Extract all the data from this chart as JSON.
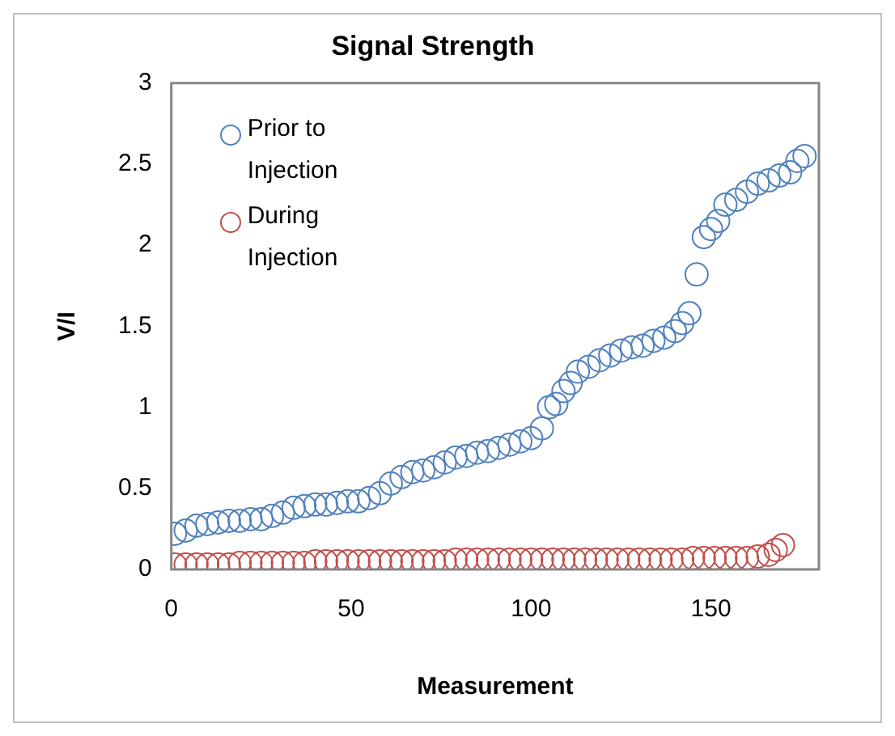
{
  "chart_data": {
    "type": "scatter",
    "title": "Signal Strength",
    "xlabel": "Measurement",
    "ylabel": "V/I",
    "xlim": [
      0,
      180
    ],
    "xticks": [
      0,
      50,
      100,
      150
    ],
    "ylim": [
      0,
      3
    ],
    "yticks": [
      0,
      0.5,
      1,
      1.5,
      2,
      2.5,
      3
    ],
    "grid": false,
    "legend": "top left",
    "marker": "circle",
    "series": [
      {
        "name": "Prior to Injection",
        "color": "#4f81bd",
        "x": [
          1,
          4,
          7,
          10,
          13,
          16,
          19,
          22,
          25,
          28,
          31,
          34,
          37,
          40,
          43,
          46,
          49,
          52,
          55,
          58,
          61,
          64,
          67,
          70,
          73,
          76,
          79,
          82,
          85,
          88,
          91,
          94,
          97,
          100,
          103,
          105,
          107,
          109,
          111,
          113,
          116,
          119,
          122,
          125,
          128,
          131,
          134,
          137,
          140,
          142,
          144,
          146,
          148,
          150,
          152,
          154,
          157,
          160,
          163,
          166,
          169,
          172,
          174,
          176
        ],
        "values": [
          0.22,
          0.24,
          0.27,
          0.28,
          0.29,
          0.3,
          0.3,
          0.31,
          0.31,
          0.33,
          0.35,
          0.38,
          0.39,
          0.4,
          0.4,
          0.41,
          0.42,
          0.42,
          0.44,
          0.47,
          0.53,
          0.57,
          0.6,
          0.61,
          0.63,
          0.66,
          0.69,
          0.7,
          0.72,
          0.73,
          0.75,
          0.77,
          0.79,
          0.81,
          0.87,
          1.0,
          1.02,
          1.1,
          1.15,
          1.22,
          1.25,
          1.29,
          1.32,
          1.35,
          1.37,
          1.38,
          1.41,
          1.43,
          1.47,
          1.52,
          1.58,
          1.82,
          2.05,
          2.1,
          2.15,
          2.25,
          2.28,
          2.33,
          2.38,
          2.4,
          2.43,
          2.45,
          2.52,
          2.55
        ]
      },
      {
        "name": "During Injection",
        "color": "#c0504d",
        "x": [
          1,
          4,
          7,
          10,
          13,
          16,
          19,
          22,
          25,
          28,
          31,
          34,
          37,
          40,
          43,
          46,
          49,
          52,
          55,
          58,
          61,
          64,
          67,
          70,
          73,
          76,
          79,
          82,
          85,
          88,
          91,
          94,
          97,
          100,
          103,
          106,
          109,
          112,
          115,
          118,
          121,
          124,
          127,
          130,
          133,
          136,
          139,
          142,
          145,
          148,
          151,
          154,
          157,
          160,
          163,
          166,
          168,
          170
        ],
        "values": [
          0.03,
          0.03,
          0.03,
          0.03,
          0.03,
          0.03,
          0.04,
          0.04,
          0.04,
          0.04,
          0.04,
          0.04,
          0.04,
          0.05,
          0.05,
          0.05,
          0.05,
          0.05,
          0.05,
          0.05,
          0.05,
          0.05,
          0.05,
          0.05,
          0.05,
          0.05,
          0.06,
          0.06,
          0.06,
          0.06,
          0.06,
          0.06,
          0.06,
          0.06,
          0.06,
          0.06,
          0.06,
          0.06,
          0.06,
          0.06,
          0.06,
          0.06,
          0.06,
          0.06,
          0.06,
          0.06,
          0.06,
          0.06,
          0.07,
          0.07,
          0.07,
          0.07,
          0.07,
          0.07,
          0.08,
          0.09,
          0.12,
          0.15
        ]
      }
    ]
  }
}
